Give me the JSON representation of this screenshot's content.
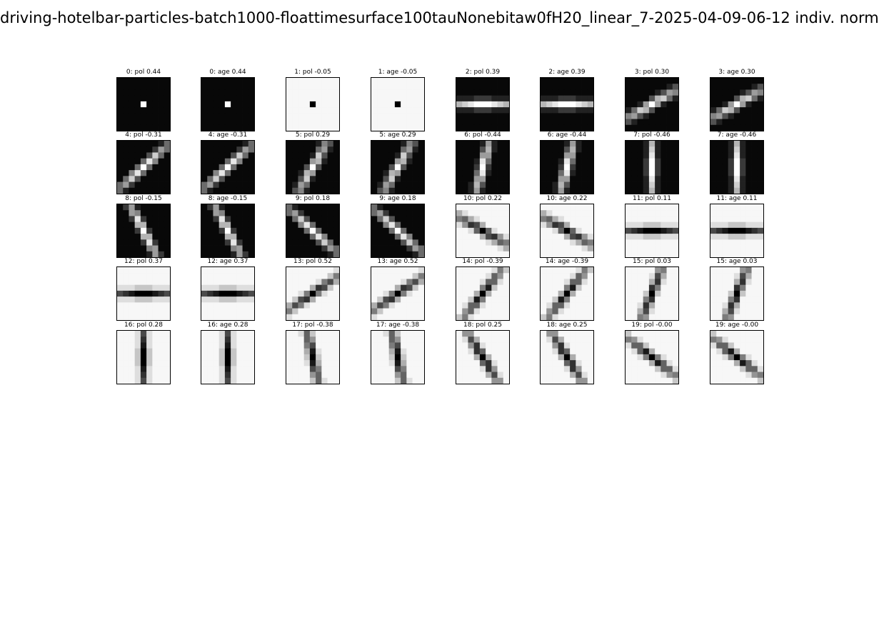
{
  "chart_data": {
    "type": "heatmap",
    "title": "driving-hotelbar-particles-batch1000-floattimesurface100tauNonebitaw0fH20_linear_7-2025-04-09-06-12 indiv. norm",
    "colormap": "grayscale",
    "panels": [
      {
        "label": "0: pol 0.44",
        "pattern": "dot",
        "inverted": false,
        "angle": 0,
        "thick": 1
      },
      {
        "label": "0: age 0.44",
        "pattern": "dot",
        "inverted": false,
        "angle": 0,
        "thick": 1
      },
      {
        "label": "1: pol -0.05",
        "pattern": "dot",
        "inverted": true,
        "angle": 0,
        "thick": 1
      },
      {
        "label": "1: age -0.05",
        "pattern": "dot",
        "inverted": true,
        "angle": 0,
        "thick": 1
      },
      {
        "label": "2: pol 0.39",
        "pattern": "line",
        "inverted": false,
        "angle": 0,
        "thick": 1
      },
      {
        "label": "2: age 0.39",
        "pattern": "line",
        "inverted": false,
        "angle": 0,
        "thick": 1
      },
      {
        "label": "3: pol 0.30",
        "pattern": "line",
        "inverted": false,
        "angle": -30,
        "thick": 1
      },
      {
        "label": "3: age 0.30",
        "pattern": "line",
        "inverted": false,
        "angle": -30,
        "thick": 1
      },
      {
        "label": "4: pol -0.31",
        "pattern": "line",
        "inverted": false,
        "angle": -42,
        "thick": 1
      },
      {
        "label": "4: age -0.31",
        "pattern": "line",
        "inverted": false,
        "angle": -42,
        "thick": 1
      },
      {
        "label": "5: pol 0.29",
        "pattern": "line",
        "inverted": false,
        "angle": -60,
        "thick": 1
      },
      {
        "label": "5: age 0.29",
        "pattern": "line",
        "inverted": false,
        "angle": -60,
        "thick": 1
      },
      {
        "label": "6: pol -0.44",
        "pattern": "line",
        "inverted": false,
        "angle": -75,
        "thick": 1
      },
      {
        "label": "6: age -0.44",
        "pattern": "line",
        "inverted": false,
        "angle": -75,
        "thick": 1
      },
      {
        "label": "7: pol -0.46",
        "pattern": "line",
        "inverted": false,
        "angle": 90,
        "thick": 1
      },
      {
        "label": "7: age -0.46",
        "pattern": "line",
        "inverted": false,
        "angle": 90,
        "thick": 1
      },
      {
        "label": "8: pol -0.15",
        "pattern": "line",
        "inverted": false,
        "angle": 62,
        "thick": 1
      },
      {
        "label": "8: age -0.15",
        "pattern": "line",
        "inverted": false,
        "angle": 62,
        "thick": 1
      },
      {
        "label": "9: pol 0.18",
        "pattern": "line",
        "inverted": false,
        "angle": 42,
        "thick": 1
      },
      {
        "label": "9: age 0.18",
        "pattern": "line",
        "inverted": false,
        "angle": 42,
        "thick": 1
      },
      {
        "label": "10: pol 0.22",
        "pattern": "line",
        "inverted": true,
        "angle": 30,
        "thick": 1
      },
      {
        "label": "10: age 0.22",
        "pattern": "line",
        "inverted": true,
        "angle": 30,
        "thick": 1
      },
      {
        "label": "11: pol 0.11",
        "pattern": "line",
        "inverted": true,
        "angle": 0,
        "thick": 1
      },
      {
        "label": "11: age 0.11",
        "pattern": "line",
        "inverted": true,
        "angle": 0,
        "thick": 1
      },
      {
        "label": "12: pol 0.37",
        "pattern": "line",
        "inverted": true,
        "angle": 0,
        "thick": 1
      },
      {
        "label": "12: age 0.37",
        "pattern": "line",
        "inverted": true,
        "angle": 0,
        "thick": 1
      },
      {
        "label": "13: pol 0.52",
        "pattern": "line",
        "inverted": true,
        "angle": -35,
        "thick": 1
      },
      {
        "label": "13: age 0.52",
        "pattern": "line",
        "inverted": true,
        "angle": -35,
        "thick": 1
      },
      {
        "label": "14: pol -0.39",
        "pattern": "line",
        "inverted": true,
        "angle": -52,
        "thick": 1
      },
      {
        "label": "14: age -0.39",
        "pattern": "line",
        "inverted": true,
        "angle": -52,
        "thick": 1
      },
      {
        "label": "15: pol 0.03",
        "pattern": "line",
        "inverted": true,
        "angle": -68,
        "thick": 1
      },
      {
        "label": "15: age 0.03",
        "pattern": "line",
        "inverted": true,
        "angle": -68,
        "thick": 1
      },
      {
        "label": "16: pol 0.28",
        "pattern": "line",
        "inverted": true,
        "angle": 90,
        "thick": 1
      },
      {
        "label": "16: age 0.28",
        "pattern": "line",
        "inverted": true,
        "angle": 90,
        "thick": 1
      },
      {
        "label": "17: pol -0.38",
        "pattern": "line",
        "inverted": true,
        "angle": 78,
        "thick": 1
      },
      {
        "label": "17: age -0.38",
        "pattern": "line",
        "inverted": true,
        "angle": 78,
        "thick": 1
      },
      {
        "label": "18: pol 0.25",
        "pattern": "line",
        "inverted": true,
        "angle": 58,
        "thick": 1
      },
      {
        "label": "18: age 0.25",
        "pattern": "line",
        "inverted": true,
        "angle": 58,
        "thick": 1
      },
      {
        "label": "19: pol -0.00",
        "pattern": "line",
        "inverted": true,
        "angle": 38,
        "thick": 1
      },
      {
        "label": "19: age -0.00",
        "pattern": "line",
        "inverted": true,
        "angle": 38,
        "thick": 1
      }
    ]
  }
}
